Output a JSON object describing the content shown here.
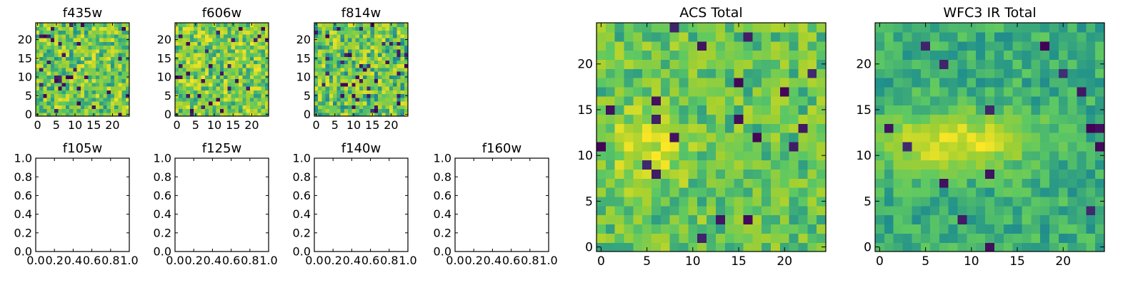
{
  "figure": {
    "background": "#ffffff"
  },
  "colormap": [
    "#440154",
    "#3b528b",
    "#21918c",
    "#5ec962",
    "#a6d02f",
    "#fde725"
  ],
  "chart_data": [
    {
      "id": "f435w",
      "type": "heatmap",
      "title": "f435w",
      "grid": false,
      "size": 25,
      "xlim": [
        -0.5,
        24.5
      ],
      "ylim": [
        -0.5,
        24.5
      ],
      "xticks": [
        0,
        5,
        10,
        15,
        20
      ],
      "xtick_labels": [
        "0",
        "5",
        "10",
        "15",
        "20"
      ],
      "yticks": [
        0,
        5,
        10,
        15,
        20
      ],
      "ytick_labels": [
        "0",
        "5",
        "10",
        "15",
        "20"
      ],
      "values": null,
      "value_model": "noise",
      "seed": 11,
      "mean": 0.68,
      "noise": 0.28,
      "dark_fraction": 0.05
    },
    {
      "id": "f606w",
      "type": "heatmap",
      "title": "f606w",
      "grid": false,
      "size": 25,
      "xlim": [
        -0.5,
        24.5
      ],
      "ylim": [
        -0.5,
        24.5
      ],
      "xticks": [
        0,
        5,
        10,
        15,
        20
      ],
      "xtick_labels": [
        "0",
        "5",
        "10",
        "15",
        "20"
      ],
      "yticks": [
        0,
        5,
        10,
        15,
        20
      ],
      "ytick_labels": [
        "0",
        "5",
        "10",
        "15",
        "20"
      ],
      "values": null,
      "value_model": "noise",
      "seed": 23,
      "mean": 0.7,
      "noise": 0.28,
      "dark_fraction": 0.04
    },
    {
      "id": "f814w",
      "type": "heatmap",
      "title": "f814w",
      "grid": false,
      "size": 25,
      "xlim": [
        -0.5,
        24.5
      ],
      "ylim": [
        -0.5,
        24.5
      ],
      "xticks": [
        0,
        5,
        10,
        15,
        20
      ],
      "xtick_labels": [
        "0",
        "5",
        "10",
        "15",
        "20"
      ],
      "yticks": [
        0,
        5,
        10,
        15,
        20
      ],
      "ytick_labels": [
        "0",
        "5",
        "10",
        "15",
        "20"
      ],
      "values": null,
      "value_model": "noise",
      "seed": 37,
      "mean": 0.66,
      "noise": 0.3,
      "dark_fraction": 0.06
    },
    {
      "id": "f105w",
      "type": "empty",
      "title": "f105w",
      "grid": false,
      "xlim": [
        0,
        1
      ],
      "ylim": [
        0,
        1
      ],
      "xticks": [
        0,
        0.2,
        0.4,
        0.6,
        0.8,
        1.0
      ],
      "xtick_labels": [
        "0.0",
        "0.2",
        "0.4",
        "0.6",
        "0.8",
        "1.0"
      ],
      "yticks": [
        0,
        0.2,
        0.4,
        0.6,
        0.8,
        1.0
      ],
      "ytick_labels": [
        "0.0",
        "0.2",
        "0.4",
        "0.6",
        "0.8",
        "1.0"
      ]
    },
    {
      "id": "f125w",
      "type": "empty",
      "title": "f125w",
      "grid": false,
      "xlim": [
        0,
        1
      ],
      "ylim": [
        0,
        1
      ],
      "xticks": [
        0,
        0.2,
        0.4,
        0.6,
        0.8,
        1.0
      ],
      "xtick_labels": [
        "0.0",
        "0.2",
        "0.4",
        "0.6",
        "0.8",
        "1.0"
      ],
      "yticks": [
        0,
        0.2,
        0.4,
        0.6,
        0.8,
        1.0
      ],
      "ytick_labels": [
        "0.0",
        "0.2",
        "0.4",
        "0.6",
        "0.8",
        "1.0"
      ]
    },
    {
      "id": "f140w",
      "type": "empty",
      "title": "f140w",
      "grid": false,
      "xlim": [
        0,
        1
      ],
      "ylim": [
        0,
        1
      ],
      "xticks": [
        0,
        0.2,
        0.4,
        0.6,
        0.8,
        1.0
      ],
      "xtick_labels": [
        "0.0",
        "0.2",
        "0.4",
        "0.6",
        "0.8",
        "1.0"
      ],
      "yticks": [
        0,
        0.2,
        0.4,
        0.6,
        0.8,
        1.0
      ],
      "ytick_labels": [
        "0.0",
        "0.2",
        "0.4",
        "0.6",
        "0.8",
        "1.0"
      ]
    },
    {
      "id": "f160w",
      "type": "empty",
      "title": "f160w",
      "grid": false,
      "xlim": [
        0,
        1
      ],
      "ylim": [
        0,
        1
      ],
      "xticks": [
        0,
        0.2,
        0.4,
        0.6,
        0.8,
        1.0
      ],
      "xtick_labels": [
        "0.0",
        "0.2",
        "0.4",
        "0.6",
        "0.8",
        "1.0"
      ],
      "yticks": [
        0,
        0.2,
        0.4,
        0.6,
        0.8,
        1.0
      ],
      "ytick_labels": [
        "0.0",
        "0.2",
        "0.4",
        "0.6",
        "0.8",
        "1.0"
      ]
    },
    {
      "id": "acs-total",
      "type": "heatmap",
      "title": "ACS Total",
      "grid": false,
      "size": 25,
      "xlim": [
        -0.5,
        24.5
      ],
      "ylim": [
        -0.5,
        24.5
      ],
      "xticks": [
        0,
        5,
        10,
        15,
        20
      ],
      "xtick_labels": [
        "0",
        "5",
        "10",
        "15",
        "20"
      ],
      "yticks": [
        0,
        5,
        10,
        15,
        20
      ],
      "ytick_labels": [
        "0",
        "5",
        "10",
        "15",
        "20"
      ],
      "values": null,
      "value_model": "blob",
      "seed": 53,
      "mean": 0.64,
      "noise": 0.2,
      "dark_fraction": 0.03,
      "blob": {
        "x": 5,
        "y": 11,
        "sx": 3.0,
        "sy": 2.5,
        "amp": 0.28
      }
    },
    {
      "id": "wfc3-ir-total",
      "type": "heatmap",
      "title": "WFC3 IR Total",
      "grid": false,
      "size": 25,
      "xlim": [
        -0.5,
        24.5
      ],
      "ylim": [
        -0.5,
        24.5
      ],
      "xticks": [
        0,
        5,
        10,
        15,
        20
      ],
      "xtick_labels": [
        "0",
        "5",
        "10",
        "15",
        "20"
      ],
      "yticks": [
        0,
        5,
        10,
        15,
        20
      ],
      "ytick_labels": [
        "0",
        "5",
        "10",
        "15",
        "20"
      ],
      "values": null,
      "value_model": "blob",
      "seed": 71,
      "mean": 0.5,
      "noise": 0.12,
      "dark_fraction": 0.02,
      "blob": {
        "x": 8,
        "y": 11.5,
        "sx": 6.0,
        "sy": 2.2,
        "amp": 0.45
      }
    }
  ]
}
